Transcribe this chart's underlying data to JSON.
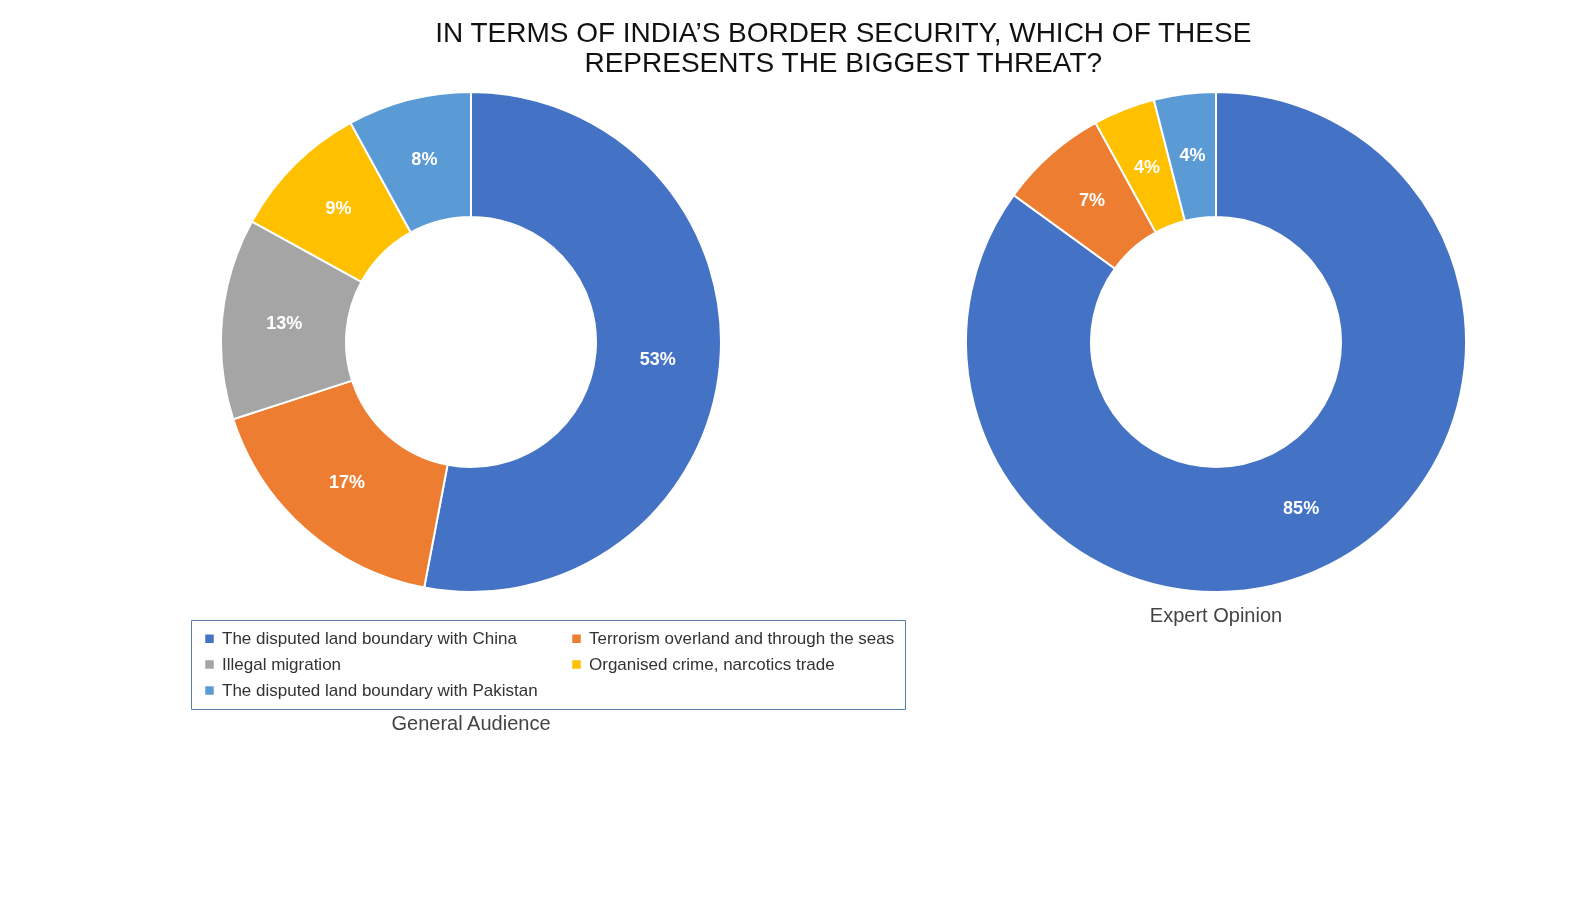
{
  "chart_data": [
    {
      "type": "donut",
      "title": "IN TERMS OF INDIA’S BORDER SECURITY, WHICH OF THESE REPRESENTS THE BIGGEST THREAT?",
      "xlabel": "General Audience",
      "legend": "bottom",
      "categories": [
        "The disputed land boundary with China",
        "Terrorism overland and through the seas",
        "Illegal migration",
        "Organised crime, narcotics trade",
        "The disputed land boundary with Pakistan"
      ],
      "values": [
        53,
        17,
        13,
        9,
        8
      ],
      "value_labels": [
        "53%",
        "17%",
        "13%",
        "9%",
        "8%"
      ],
      "colors": [
        "#4472c4",
        "#ed7d31",
        "#a5a5a5",
        "#ffc000",
        "#5b9bd5"
      ]
    },
    {
      "type": "donut",
      "xlabel": "Expert Opinion",
      "categories": [
        null,
        null,
        null,
        null
      ],
      "values": [
        85,
        7,
        4,
        4
      ],
      "value_labels": [
        "85%",
        "7%",
        "4%",
        "4%"
      ],
      "colors": [
        "#4472c4",
        "#ed7d31",
        "#ffc000",
        "#5b9bd5"
      ]
    }
  ]
}
